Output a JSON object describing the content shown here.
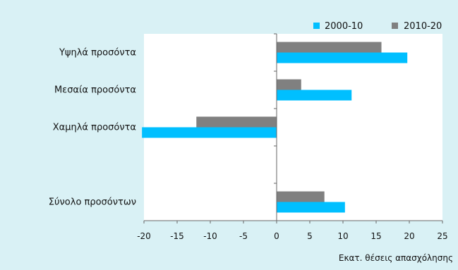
{
  "chart_data": {
    "type": "bar",
    "orientation": "horizontal",
    "categories": [
      "Υψηλά προσόντα",
      "Μεσαία προσόντα",
      "Χαμηλά προσόντα",
      "",
      "Σύνολο προσόντων"
    ],
    "series": [
      {
        "name": "2000-10",
        "color": "#00bfff",
        "values": [
          19.7,
          11.3,
          -20.3,
          null,
          10.3
        ]
      },
      {
        "name": "2010-20",
        "color": "#808080",
        "values": [
          15.8,
          3.7,
          -12.1,
          null,
          7.2
        ]
      }
    ],
    "xlabel": "Εκατ. θέσεις απασχόλησης",
    "ylabel": "",
    "xlim": [
      -20,
      25
    ],
    "xticks": [
      "-20",
      "-15",
      "-10",
      "-5",
      "0",
      "5",
      "10",
      "15",
      "20",
      "25"
    ],
    "legend_position": "top-right",
    "grid": false
  }
}
